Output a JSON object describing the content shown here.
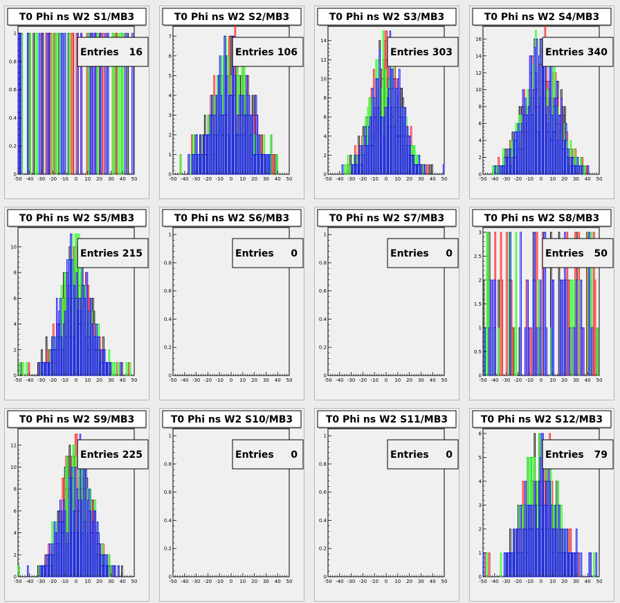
{
  "colors": {
    "background": "#ececec",
    "frame": "#f0f0f0",
    "box_fill": "#ffffff",
    "series": [
      "#000000",
      "#ff0000",
      "#00ff00",
      "#0000ff"
    ]
  },
  "charts": [
    {
      "title": "T0 Phi ns W2 S1/MB3",
      "stats_label": "Entries",
      "entries": "16",
      "yticks": [
        "0",
        "0.2",
        "0.4",
        "0.6",
        "0.8",
        "1"
      ],
      "ymax": 1.05,
      "seed": 11,
      "kind": "sparse",
      "sigma": 25
    },
    {
      "title": "T0 Phi ns W2 S2/MB3",
      "stats_label": "Entries",
      "entries": "106",
      "yticks": [
        "0",
        "1",
        "2",
        "3",
        "4",
        "5",
        "6",
        "7"
      ],
      "ymax": 7.5,
      "seed": 22,
      "kind": "gauss",
      "sigma": 16
    },
    {
      "title": "T0 Phi ns W2 S3/MB3",
      "stats_label": "Entries",
      "entries": "303",
      "yticks": [
        "0",
        "2",
        "4",
        "6",
        "8",
        "10",
        "12",
        "14"
      ],
      "ymax": 15.5,
      "seed": 33,
      "kind": "gauss",
      "sigma": 13
    },
    {
      "title": "T0 Phi ns W2 S4/MB3",
      "stats_label": "Entries",
      "entries": "340",
      "yticks": [
        "0",
        "2",
        "4",
        "6",
        "8",
        "10",
        "12",
        "14",
        "16"
      ],
      "ymax": 17.5,
      "seed": 44,
      "kind": "gauss",
      "sigma": 15
    },
    {
      "title": "T0 Phi ns W2 S5/MB3",
      "stats_label": "Entries",
      "entries": "215",
      "yticks": [
        "0",
        "2",
        "4",
        "6",
        "8",
        "10"
      ],
      "ymax": 11.5,
      "seed": 55,
      "kind": "gauss",
      "sigma": 13
    },
    {
      "title": "T0 Phi ns W2 S6/MB3",
      "stats_label": "Entries",
      "entries": "0",
      "yticks": [
        "0",
        "0.2",
        "0.4",
        "0.6",
        "0.8",
        "1"
      ],
      "ymax": 1.05,
      "seed": 0,
      "kind": "empty",
      "sigma": 0
    },
    {
      "title": "T0 Phi ns W2 S7/MB3",
      "stats_label": "Entries",
      "entries": "0",
      "yticks": [
        "0",
        "0.2",
        "0.4",
        "0.6",
        "0.8",
        "1"
      ],
      "ymax": 1.05,
      "seed": 0,
      "kind": "empty",
      "sigma": 0
    },
    {
      "title": "T0 Phi ns W2 S8/MB3",
      "stats_label": "Entries",
      "entries": "50",
      "yticks": [
        "0",
        "0.5",
        "1",
        "1.5",
        "2",
        "2.5",
        "3"
      ],
      "ymax": 3.1,
      "seed": 88,
      "kind": "sparse",
      "sigma": 25
    },
    {
      "title": "T0 Phi ns W2 S9/MB3",
      "stats_label": "Entries",
      "entries": "225",
      "yticks": [
        "0",
        "2",
        "4",
        "6",
        "8",
        "10",
        "12"
      ],
      "ymax": 13.5,
      "seed": 99,
      "kind": "gauss",
      "sigma": 13
    },
    {
      "title": "T0 Phi ns W2 S10/MB3",
      "stats_label": "Entries",
      "entries": "0",
      "yticks": [
        "0",
        "0.2",
        "0.4",
        "0.6",
        "0.8",
        "1"
      ],
      "ymax": 1.05,
      "seed": 0,
      "kind": "empty",
      "sigma": 0
    },
    {
      "title": "T0 Phi ns W2 S11/MB3",
      "stats_label": "Entries",
      "entries": "0",
      "yticks": [
        "0",
        "0.2",
        "0.4",
        "0.6",
        "0.8",
        "1"
      ],
      "ymax": 1.05,
      "seed": 0,
      "kind": "empty",
      "sigma": 0
    },
    {
      "title": "T0 Phi ns W2 S12/MB3",
      "stats_label": "Entries",
      "entries": "79",
      "yticks": [
        "0",
        "1",
        "2",
        "3",
        "4",
        "5",
        "6"
      ],
      "ymax": 6.2,
      "seed": 121,
      "kind": "gauss",
      "sigma": 15
    }
  ],
  "chart_data": {
    "type": "bar",
    "xlim": [
      -50,
      50
    ],
    "xticks": [
      "-50",
      "-40",
      "-30",
      "-20",
      "-10",
      "0",
      "10",
      "20",
      "30",
      "40",
      "50"
    ]
  }
}
